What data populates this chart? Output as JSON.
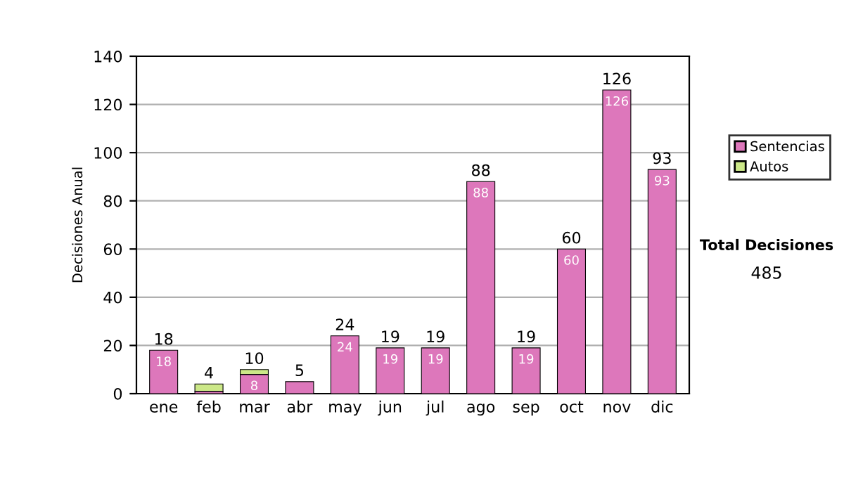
{
  "chart_data": {
    "type": "bar",
    "stacked": true,
    "ylabel": "Decisiones Anual",
    "categories": [
      "ene",
      "feb",
      "mar",
      "abr",
      "may",
      "jun",
      "jul",
      "ago",
      "sep",
      "oct",
      "nov",
      "dic"
    ],
    "series": [
      {
        "name": "Sentencias",
        "color": "#dd77bb",
        "values": [
          18,
          1,
          8,
          5,
          24,
          19,
          19,
          88,
          19,
          60,
          126,
          93
        ],
        "value_labels": [
          "18",
          null,
          "8",
          null,
          "24",
          "19",
          "19",
          "88",
          "19",
          "60",
          "126",
          "93"
        ]
      },
      {
        "name": "Autos",
        "color": "#cce888",
        "values": [
          null,
          3,
          2,
          null,
          null,
          null,
          null,
          null,
          null,
          null,
          null,
          null
        ]
      }
    ],
    "totals": [
      "18",
      "4",
      "10",
      "5",
      "24",
      "19",
      "19",
      "88",
      "19",
      "60",
      "126",
      "93"
    ],
    "ylim": [
      0,
      140
    ],
    "yticks": [
      0,
      20,
      40,
      60,
      80,
      100,
      120,
      140
    ],
    "grid": "y",
    "legend": "right",
    "annotations": [
      "Total Decisiones",
      "485"
    ]
  }
}
